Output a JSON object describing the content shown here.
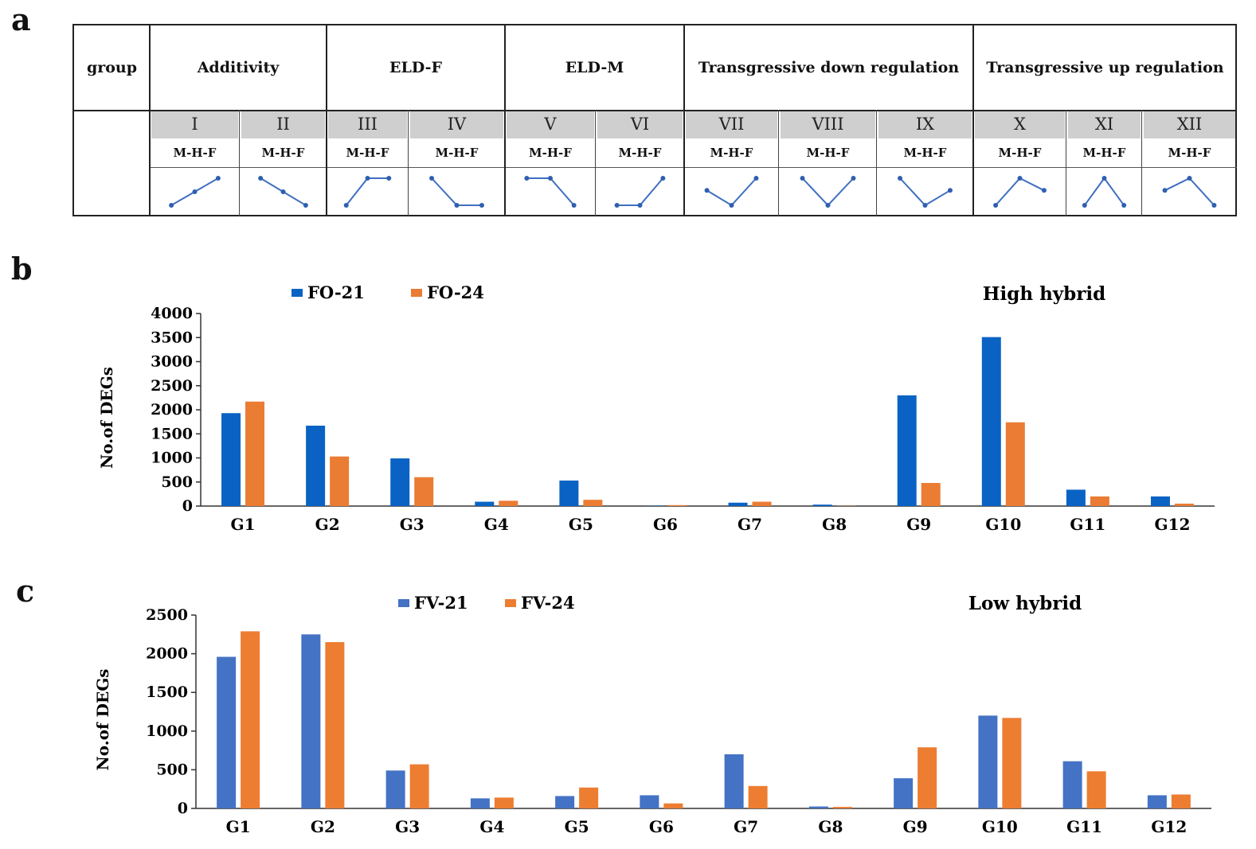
{
  "panel_labels": {
    "a": "a",
    "b": "b",
    "c": "c"
  },
  "table": {
    "group_label": "group",
    "groups": [
      "Additivity",
      "ELD-F",
      "ELD-M",
      "Transgressive down regulation",
      "Transgressive up regulation"
    ],
    "classes": [
      {
        "roman": "I",
        "order": "M-H-F",
        "pattern": [
          0,
          0.5,
          1
        ]
      },
      {
        "roman": "II",
        "order": "M-H-F",
        "pattern": [
          1,
          0.5,
          0
        ]
      },
      {
        "roman": "III",
        "order": "M-H-F",
        "pattern": [
          0,
          1,
          1
        ]
      },
      {
        "roman": "IV",
        "order": "M-H-F",
        "pattern": [
          1,
          0,
          0
        ]
      },
      {
        "roman": "V",
        "order": "M-H-F",
        "pattern": [
          1,
          1,
          0
        ]
      },
      {
        "roman": "VI",
        "order": "M-H-F",
        "pattern": [
          0,
          0,
          1
        ]
      },
      {
        "roman": "VII",
        "order": "M-H-F",
        "pattern": [
          0.55,
          0,
          1
        ]
      },
      {
        "roman": "VIII",
        "order": "M-H-F",
        "pattern": [
          1,
          0,
          1
        ]
      },
      {
        "roman": "IX",
        "order": "M-H-F",
        "pattern": [
          1,
          0,
          0.55
        ]
      },
      {
        "roman": "X",
        "order": "M-H-F",
        "pattern": [
          0,
          1,
          0.55
        ]
      },
      {
        "roman": "XI",
        "order": "M-H-F",
        "pattern": [
          0,
          1,
          0
        ]
      },
      {
        "roman": "XII",
        "order": "M-H-F",
        "pattern": [
          0.55,
          1,
          0
        ]
      }
    ]
  },
  "chart_data": [
    {
      "type": "bar",
      "title": "High hybrid",
      "ylabel": "No.of DEGs",
      "xlabel": "",
      "ylim": [
        0,
        4000
      ],
      "yticks": [
        0,
        500,
        1000,
        1500,
        2000,
        2500,
        3000,
        3500,
        4000
      ],
      "legend_position": "top-left",
      "categories": [
        "G1",
        "G2",
        "G3",
        "G4",
        "G5",
        "G6",
        "G7",
        "G8",
        "G9",
        "G10",
        "G11",
        "G12"
      ],
      "series": [
        {
          "name": "FO-21",
          "color": "#0a63c4",
          "values": [
            1930,
            1670,
            990,
            90,
            530,
            5,
            70,
            30,
            2300,
            3510,
            340,
            200
          ]
        },
        {
          "name": "FO-24",
          "color": "#ea7c33",
          "values": [
            2170,
            1030,
            600,
            110,
            130,
            20,
            90,
            5,
            480,
            1740,
            200,
            50
          ]
        }
      ]
    },
    {
      "type": "bar",
      "title": "Low hybrid",
      "ylabel": "No.of DEGs",
      "xlabel": "",
      "ylim": [
        0,
        2500
      ],
      "yticks": [
        0,
        500,
        1000,
        1500,
        2000,
        2500
      ],
      "legend_position": "top-left",
      "categories": [
        "G1",
        "G2",
        "G3",
        "G4",
        "G5",
        "G6",
        "G7",
        "G8",
        "G9",
        "G10",
        "G11",
        "G12"
      ],
      "series": [
        {
          "name": "FV-21",
          "color": "#4472c4",
          "values": [
            1960,
            2250,
            490,
            130,
            160,
            170,
            700,
            25,
            390,
            1200,
            610,
            170
          ]
        },
        {
          "name": "FV-24",
          "color": "#ed7d31",
          "values": [
            2290,
            2150,
            570,
            140,
            270,
            65,
            290,
            20,
            790,
            1170,
            480,
            180
          ]
        }
      ]
    }
  ]
}
